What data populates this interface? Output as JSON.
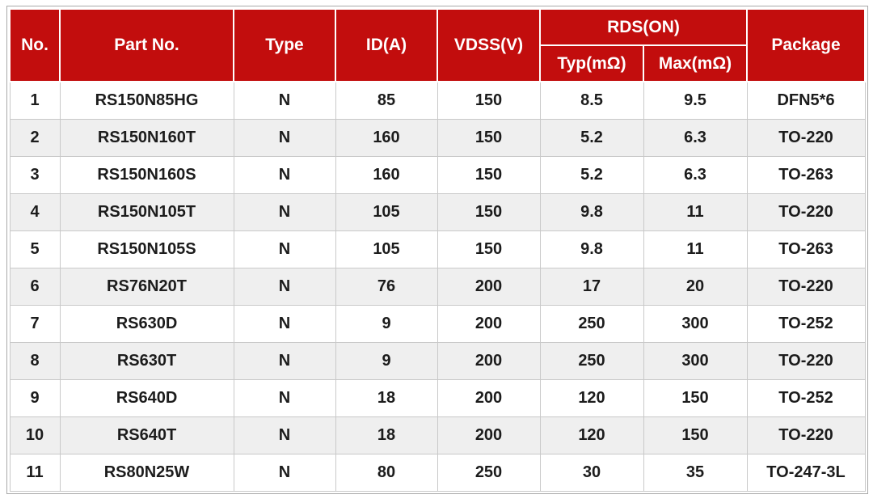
{
  "colors": {
    "header_background": "#c20d0d",
    "header_text": "#ffffff",
    "row_background": "#ffffff",
    "row_alt_background": "#efefef",
    "cell_border": "#c9c9c9",
    "outer_border": "#a9a9a9",
    "body_text": "#1c1c1c"
  },
  "table": {
    "headers": {
      "no": "No.",
      "part_no": "Part No.",
      "type": "Type",
      "id_a": "ID(A)",
      "vdss_v": "VDSS(V)",
      "rds_on": "RDS(ON)",
      "typ_mohm": "Typ(mΩ)",
      "max_mohm": "Max(mΩ)",
      "package": "Package"
    },
    "rows": [
      [
        "1",
        "RS150N85HG",
        "N",
        "85",
        "150",
        "8.5",
        "9.5",
        "DFN5*6"
      ],
      [
        "2",
        "RS150N160T",
        "N",
        "160",
        "150",
        "5.2",
        "6.3",
        "TO-220"
      ],
      [
        "3",
        "RS150N160S",
        "N",
        "160",
        "150",
        "5.2",
        "6.3",
        "TO-263"
      ],
      [
        "4",
        "RS150N105T",
        "N",
        "105",
        "150",
        "9.8",
        "11",
        "TO-220"
      ],
      [
        "5",
        "RS150N105S",
        "N",
        "105",
        "150",
        "9.8",
        "11",
        "TO-263"
      ],
      [
        "6",
        "RS76N20T",
        "N",
        "76",
        "200",
        "17",
        "20",
        "TO-220"
      ],
      [
        "7",
        "RS630D",
        "N",
        "9",
        "200",
        "250",
        "300",
        "TO-252"
      ],
      [
        "8",
        "RS630T",
        "N",
        "9",
        "200",
        "250",
        "300",
        "TO-220"
      ],
      [
        "9",
        "RS640D",
        "N",
        "18",
        "200",
        "120",
        "150",
        "TO-252"
      ],
      [
        "10",
        "RS640T",
        "N",
        "18",
        "200",
        "120",
        "150",
        "TO-220"
      ],
      [
        "11",
        "RS80N25W",
        "N",
        "80",
        "250",
        "30",
        "35",
        "TO-247-3L"
      ]
    ]
  },
  "chart_data": {
    "type": "table",
    "title": "MOSFET part selection table",
    "columns": [
      "No.",
      "Part No.",
      "Type",
      "ID(A)",
      "VDSS(V)",
      "RDS(ON) Typ(mΩ)",
      "RDS(ON) Max(mΩ)",
      "Package"
    ],
    "rows": [
      [
        "1",
        "RS150N85HG",
        "N",
        "85",
        "150",
        "8.5",
        "9.5",
        "DFN5*6"
      ],
      [
        "2",
        "RS150N160T",
        "N",
        "160",
        "150",
        "5.2",
        "6.3",
        "TO-220"
      ],
      [
        "3",
        "RS150N160S",
        "N",
        "160",
        "150",
        "5.2",
        "6.3",
        "TO-263"
      ],
      [
        "4",
        "RS150N105T",
        "N",
        "105",
        "150",
        "9.8",
        "11",
        "TO-220"
      ],
      [
        "5",
        "RS150N105S",
        "N",
        "105",
        "150",
        "9.8",
        "11",
        "TO-263"
      ],
      [
        "6",
        "RS76N20T",
        "N",
        "76",
        "200",
        "17",
        "20",
        "TO-220"
      ],
      [
        "7",
        "RS630D",
        "N",
        "9",
        "200",
        "250",
        "300",
        "TO-252"
      ],
      [
        "8",
        "RS630T",
        "N",
        "9",
        "200",
        "250",
        "300",
        "TO-220"
      ],
      [
        "9",
        "RS640D",
        "N",
        "18",
        "200",
        "120",
        "150",
        "TO-252"
      ],
      [
        "10",
        "RS640T",
        "N",
        "18",
        "200",
        "120",
        "150",
        "TO-220"
      ],
      [
        "11",
        "RS80N25W",
        "N",
        "80",
        "250",
        "30",
        "35",
        "TO-247-3L"
      ]
    ],
    "layout": {
      "header_levels": 2,
      "merged_header": {
        "label": "RDS(ON)",
        "spans": [
          "Typ(mΩ)",
          "Max(mΩ)"
        ]
      },
      "striped_rows": true
    }
  }
}
